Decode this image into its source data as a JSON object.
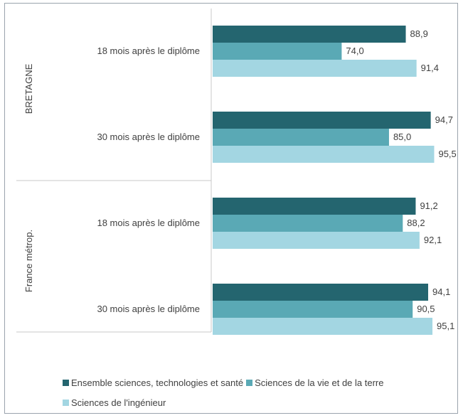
{
  "chart_data": {
    "type": "bar",
    "orientation": "horizontal",
    "groups": [
      {
        "label": "BRETAGNE",
        "categories": [
          "18 mois après le diplôme",
          "30 mois après le diplôme"
        ]
      },
      {
        "label": "France métrop.",
        "categories": [
          "18 mois après le diplôme",
          "30 mois après le diplôme"
        ]
      }
    ],
    "series": [
      {
        "name": "Ensemble sciences, technologies et santé",
        "color": "#24656f",
        "values": [
          88.9,
          94.7,
          91.2,
          94.1
        ],
        "labels": [
          "88,9",
          "94,7",
          "91,2",
          "94,1"
        ]
      },
      {
        "name": "Sciences de la vie et de la terre",
        "color": "#5aa9b5",
        "values": [
          74.0,
          85.0,
          88.2,
          90.5
        ],
        "labels": [
          "74,0",
          "85,0",
          "88,2",
          "90,5"
        ]
      },
      {
        "name": "Sciences de l'ingénieur",
        "color": "#a3d6e2",
        "values": [
          91.4,
          95.5,
          92.1,
          95.1
        ],
        "labels": [
          "91,4",
          "95,5",
          "92,1",
          "95,1"
        ]
      }
    ],
    "xlim": [
      0,
      100
    ],
    "grid": false,
    "legend_position": "bottom"
  }
}
